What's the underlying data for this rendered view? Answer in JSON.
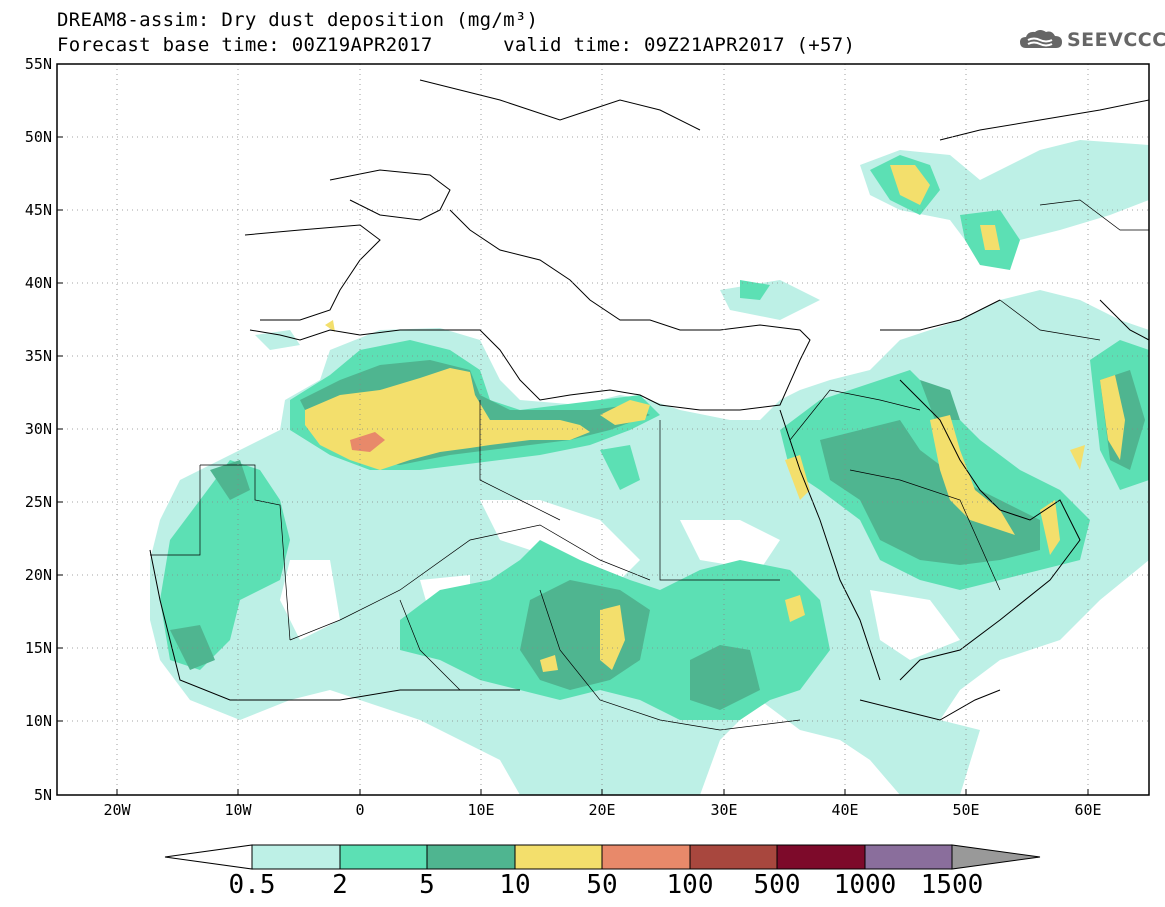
{
  "title": {
    "line1": "DREAM8-assim: Dry dust deposition (mg/m³)",
    "line2": "Forecast base time: 00Z19APR2017      valid time: 09Z21APR2017 (+57)"
  },
  "logo": {
    "text": "SEEVCCC",
    "icon": "cloud-icon"
  },
  "axes": {
    "lat_labels": [
      "55N",
      "50N",
      "45N",
      "40N",
      "35N",
      "30N",
      "25N",
      "20N",
      "15N",
      "10N",
      "5N"
    ],
    "lon_labels": [
      "20W",
      "10W",
      "0",
      "10E",
      "20E",
      "30E",
      "40E",
      "50E",
      "60E"
    ],
    "lat_range": [
      5,
      55
    ],
    "lon_range": [
      -25,
      65
    ],
    "grid": "dotted"
  },
  "colorbar": {
    "labels": [
      "0.5",
      "2",
      "5",
      "10",
      "50",
      "100",
      "500",
      "1000",
      "1500"
    ],
    "colors": [
      "#ffffff",
      "#bdf0e6",
      "#5ce0b4",
      "#4fb590",
      "#f3df6c",
      "#e8896a",
      "#a8473e",
      "#7d0a2a",
      "#8a6e9c",
      "#999999"
    ],
    "extend": "both"
  }
}
